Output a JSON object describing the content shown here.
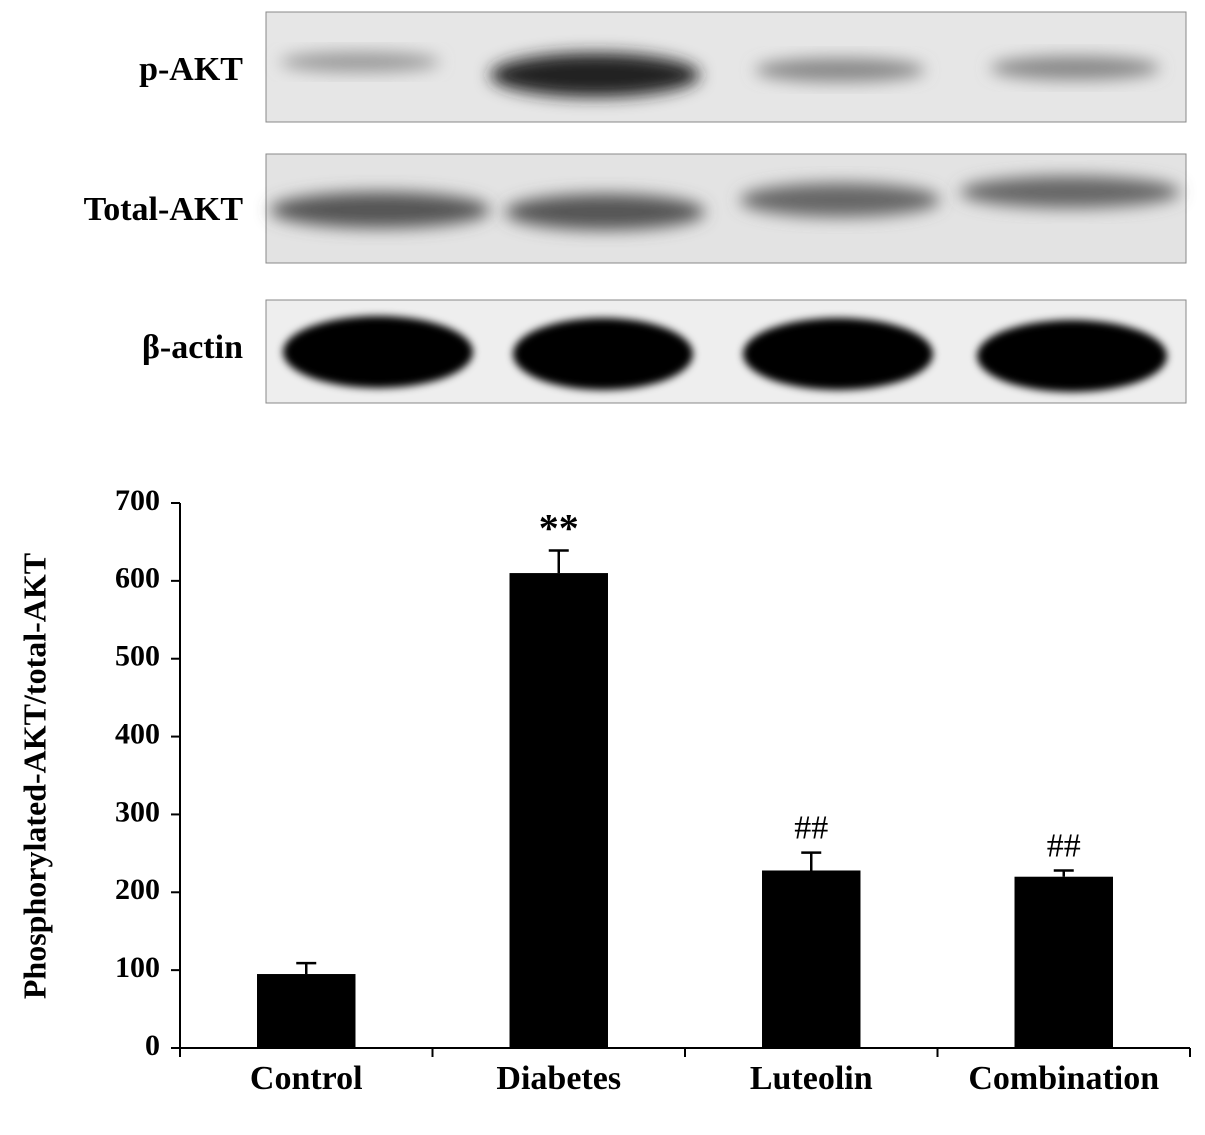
{
  "blot": {
    "rows": [
      {
        "label": "p-AKT"
      },
      {
        "label": "Total-AKT"
      },
      {
        "label": "β-actin"
      }
    ]
  },
  "chart_data": {
    "type": "bar",
    "y_label": "Phosphorylated-AKT/total-AKT",
    "categories": [
      "Control",
      "Diabetes",
      "Luteolin",
      "Combination"
    ],
    "values": [
      95,
      610,
      228,
      220
    ],
    "errors": [
      14,
      29,
      23,
      8
    ],
    "color": "#000000",
    "annotations": [
      {
        "text": "**",
        "category": "Diabetes"
      },
      {
        "text": "##",
        "category": "Luteolin"
      },
      {
        "text": "##",
        "category": "Combination"
      }
    ],
    "ylim": [
      0,
      700
    ],
    "yticks": [
      0,
      100,
      200,
      300,
      400,
      500,
      600,
      700
    ],
    "grid": false
  }
}
